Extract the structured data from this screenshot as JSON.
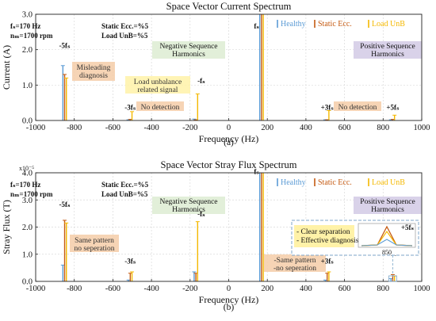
{
  "colors": {
    "healthy": "#5b9bd5",
    "static": "#c55a11",
    "unbalance": "#f4b800"
  },
  "chart_data": [
    {
      "type": "line",
      "title": "Space Vector Current Spectrum",
      "xlabel": "Frequency (Hz)",
      "ylabel": "Current (A)",
      "caption": "(a)",
      "xlim": [
        -1000,
        1000
      ],
      "ylim": [
        0,
        3.0
      ],
      "xticks": [
        -1000,
        -800,
        -600,
        -400,
        -200,
        0,
        200,
        400,
        600,
        800,
        1000
      ],
      "yticks": [
        0.0,
        1.0,
        2.0,
        3.0
      ],
      "ytick_labels": [
        "0.0",
        "1.0",
        "2.0",
        "3.0"
      ],
      "yexp": "",
      "grid": true,
      "legend": {
        "placement": "top-right",
        "entries": [
          "Healthy",
          "Static Ecc.",
          "Load UnB"
        ]
      },
      "params": [
        {
          "text": "fₛ=170 Hz"
        },
        {
          "text": "nₘ=1700 rpm"
        },
        {
          "text": "Static Ecc.=%5"
        },
        {
          "text": "Load UnB=%5"
        }
      ],
      "series": [
        {
          "name": "Healthy",
          "x": [
            -850,
            -510,
            -170,
            170,
            510,
            850
          ],
          "y": [
            1.55,
            0.02,
            0.04,
            3.0,
            0.02,
            0.02
          ]
        },
        {
          "name": "Static Ecc.",
          "x": [
            -850,
            -510,
            -170,
            170,
            510,
            850
          ],
          "y": [
            1.3,
            0.03,
            0.02,
            3.0,
            0.02,
            0.03
          ]
        },
        {
          "name": "Load UnB",
          "x": [
            -850,
            -510,
            -170,
            170,
            510,
            850
          ],
          "y": [
            1.2,
            0.25,
            0.75,
            3.0,
            0.28,
            0.15
          ]
        }
      ],
      "harmonic_labels": [
        {
          "text": "-5fₛ",
          "x": -850,
          "y": 2.05
        },
        {
          "text": "-3fₛ",
          "x": -510,
          "y": 0.3
        },
        {
          "text": "-fₛ",
          "x": -170,
          "y": 1.05
        },
        {
          "text": "fₛ",
          "x": 170,
          "y": 2.6
        },
        {
          "text": "+3fₛ",
          "x": 510,
          "y": 0.3
        },
        {
          "text": "+5fₛ",
          "x": 850,
          "y": 0.3
        }
      ],
      "region_labels": [
        {
          "text": [
            "Negative Sequence",
            "Harmonics"
          ],
          "color": "#e2efd9"
        },
        {
          "text": [
            "Positive Sequence",
            "Harmonics"
          ],
          "color": "#d9d2e9"
        }
      ],
      "annotations": [
        {
          "text": [
            "Misleading",
            "diagnosis"
          ],
          "color": "#f4cca8"
        },
        {
          "text": [
            "Load unbalance",
            "related signal"
          ],
          "color": "#fff2a8"
        },
        {
          "text": [
            "No detection"
          ],
          "color": "#f4cca8"
        },
        {
          "text": [
            "No detection"
          ],
          "color": "#f4cca8"
        }
      ]
    },
    {
      "type": "line",
      "title": "Space Vector Stray Flux Spectrum",
      "xlabel": "Frequency (Hz)",
      "ylabel": "Stray Flux (T)",
      "caption": "(b)",
      "xlim": [
        -1000,
        1000
      ],
      "ylim": [
        0,
        4.0
      ],
      "xticks": [
        -1000,
        -800,
        -600,
        -400,
        -200,
        0,
        200,
        400,
        600,
        800,
        1000
      ],
      "yticks": [
        0.0,
        1.0,
        2.0,
        3.0,
        4.0
      ],
      "ytick_labels": [
        "0.0",
        "1.0",
        "2.0",
        "3.0",
        "4.0"
      ],
      "yexp": "x10⁻⁵",
      "grid": true,
      "legend": {
        "placement": "top-right",
        "entries": [
          "Healthy",
          "Static Ecc.",
          "Load UnB"
        ]
      },
      "params": [
        {
          "text": "fₛ=170 Hz"
        },
        {
          "text": "nₘ=1700 rpm"
        },
        {
          "text": "Static Ecc.=%5"
        },
        {
          "text": "Load UnB=%5"
        }
      ],
      "series": [
        {
          "name": "Healthy",
          "x": [
            -850,
            -510,
            -170,
            170,
            510,
            850
          ],
          "y": [
            0.6,
            0.05,
            0.35,
            4.0,
            0.05,
            0.1
          ]
        },
        {
          "name": "Static Ecc.",
          "x": [
            -850,
            -510,
            -170,
            170,
            510,
            850
          ],
          "y": [
            2.25,
            0.3,
            0.3,
            4.0,
            0.3,
            0.25
          ]
        },
        {
          "name": "Load UnB",
          "x": [
            -850,
            -510,
            -170,
            170,
            510,
            850
          ],
          "y": [
            2.15,
            0.35,
            2.2,
            4.0,
            0.35,
            0.2
          ]
        }
      ],
      "harmonic_labels": [
        {
          "text": "-5fₛ",
          "x": -850,
          "y": 2.75
        },
        {
          "text": "-3fₛ",
          "x": -510,
          "y": 0.65
        },
        {
          "text": "-fₛ",
          "x": -170,
          "y": 2.4
        },
        {
          "text": "fₛ",
          "x": 170,
          "y": 3.95
        },
        {
          "text": "+3fₛ",
          "x": 510,
          "y": 0.65
        },
        {
          "text": "+5fₛ",
          "x": 850,
          "y": 0.95
        }
      ],
      "region_labels": [
        {
          "text": [
            "Negative Sequence",
            "Harmonics"
          ],
          "color": "#e2efd9"
        },
        {
          "text": [
            "Positive Sequence",
            "Harmonics"
          ],
          "color": "#d9d2e9"
        }
      ],
      "annotations": [
        {
          "text": [
            "Same pattern",
            "no seperation"
          ],
          "color": "#f4cca8"
        },
        {
          "text": [
            "-Same pattern",
            "-no seperation"
          ],
          "color": "#f4cca8"
        }
      ],
      "inset": {
        "labels": [
          "- Clear separation",
          "- Effective diagnosis"
        ],
        "tag": "+5fₛ",
        "tick": "850",
        "color": "#fff2a8"
      }
    }
  ]
}
